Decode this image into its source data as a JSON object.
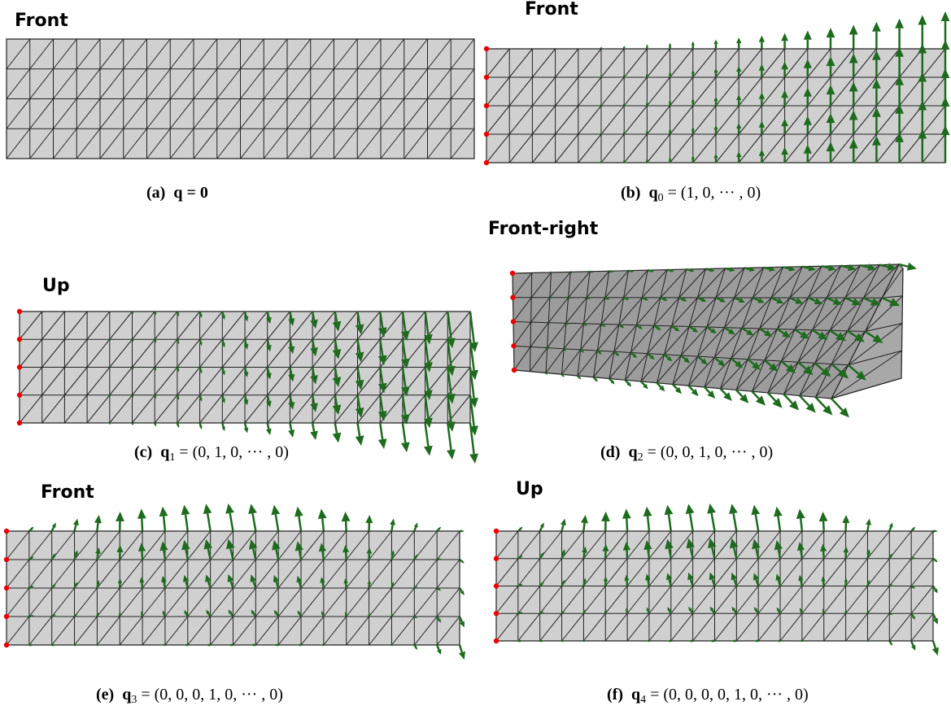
{
  "panels": [
    {
      "view": "Front",
      "caption": {
        "label": "(a)",
        "symbol": "q",
        "equation": "= 0"
      }
    },
    {
      "view": "Front",
      "caption": {
        "label": "(b)",
        "symbol": "q",
        "subscript": "0",
        "equation": "= (1, 0, ··· , 0)"
      }
    },
    {
      "view": "Up",
      "caption": {
        "label": "(c)",
        "symbol": "q",
        "subscript": "1",
        "equation": "= (0, 1, 0, ··· , 0)"
      }
    },
    {
      "view": "Front-right",
      "caption": {
        "label": "(d)",
        "symbol": "q",
        "subscript": "2",
        "equation": "= (0, 0, 1, 0, ··· , 0)"
      }
    },
    {
      "view": "Front",
      "caption": {
        "label": "(e)",
        "symbol": "q",
        "subscript": "3",
        "equation": "= (0, 0, 0, 1, 0, ··· , 0)"
      }
    },
    {
      "view": "Up",
      "caption": {
        "label": "(f)",
        "symbol": "q",
        "subscript": "4",
        "equation": "= (0, 0, 0, 0, 1, 0, ··· , 0)"
      }
    }
  ]
}
